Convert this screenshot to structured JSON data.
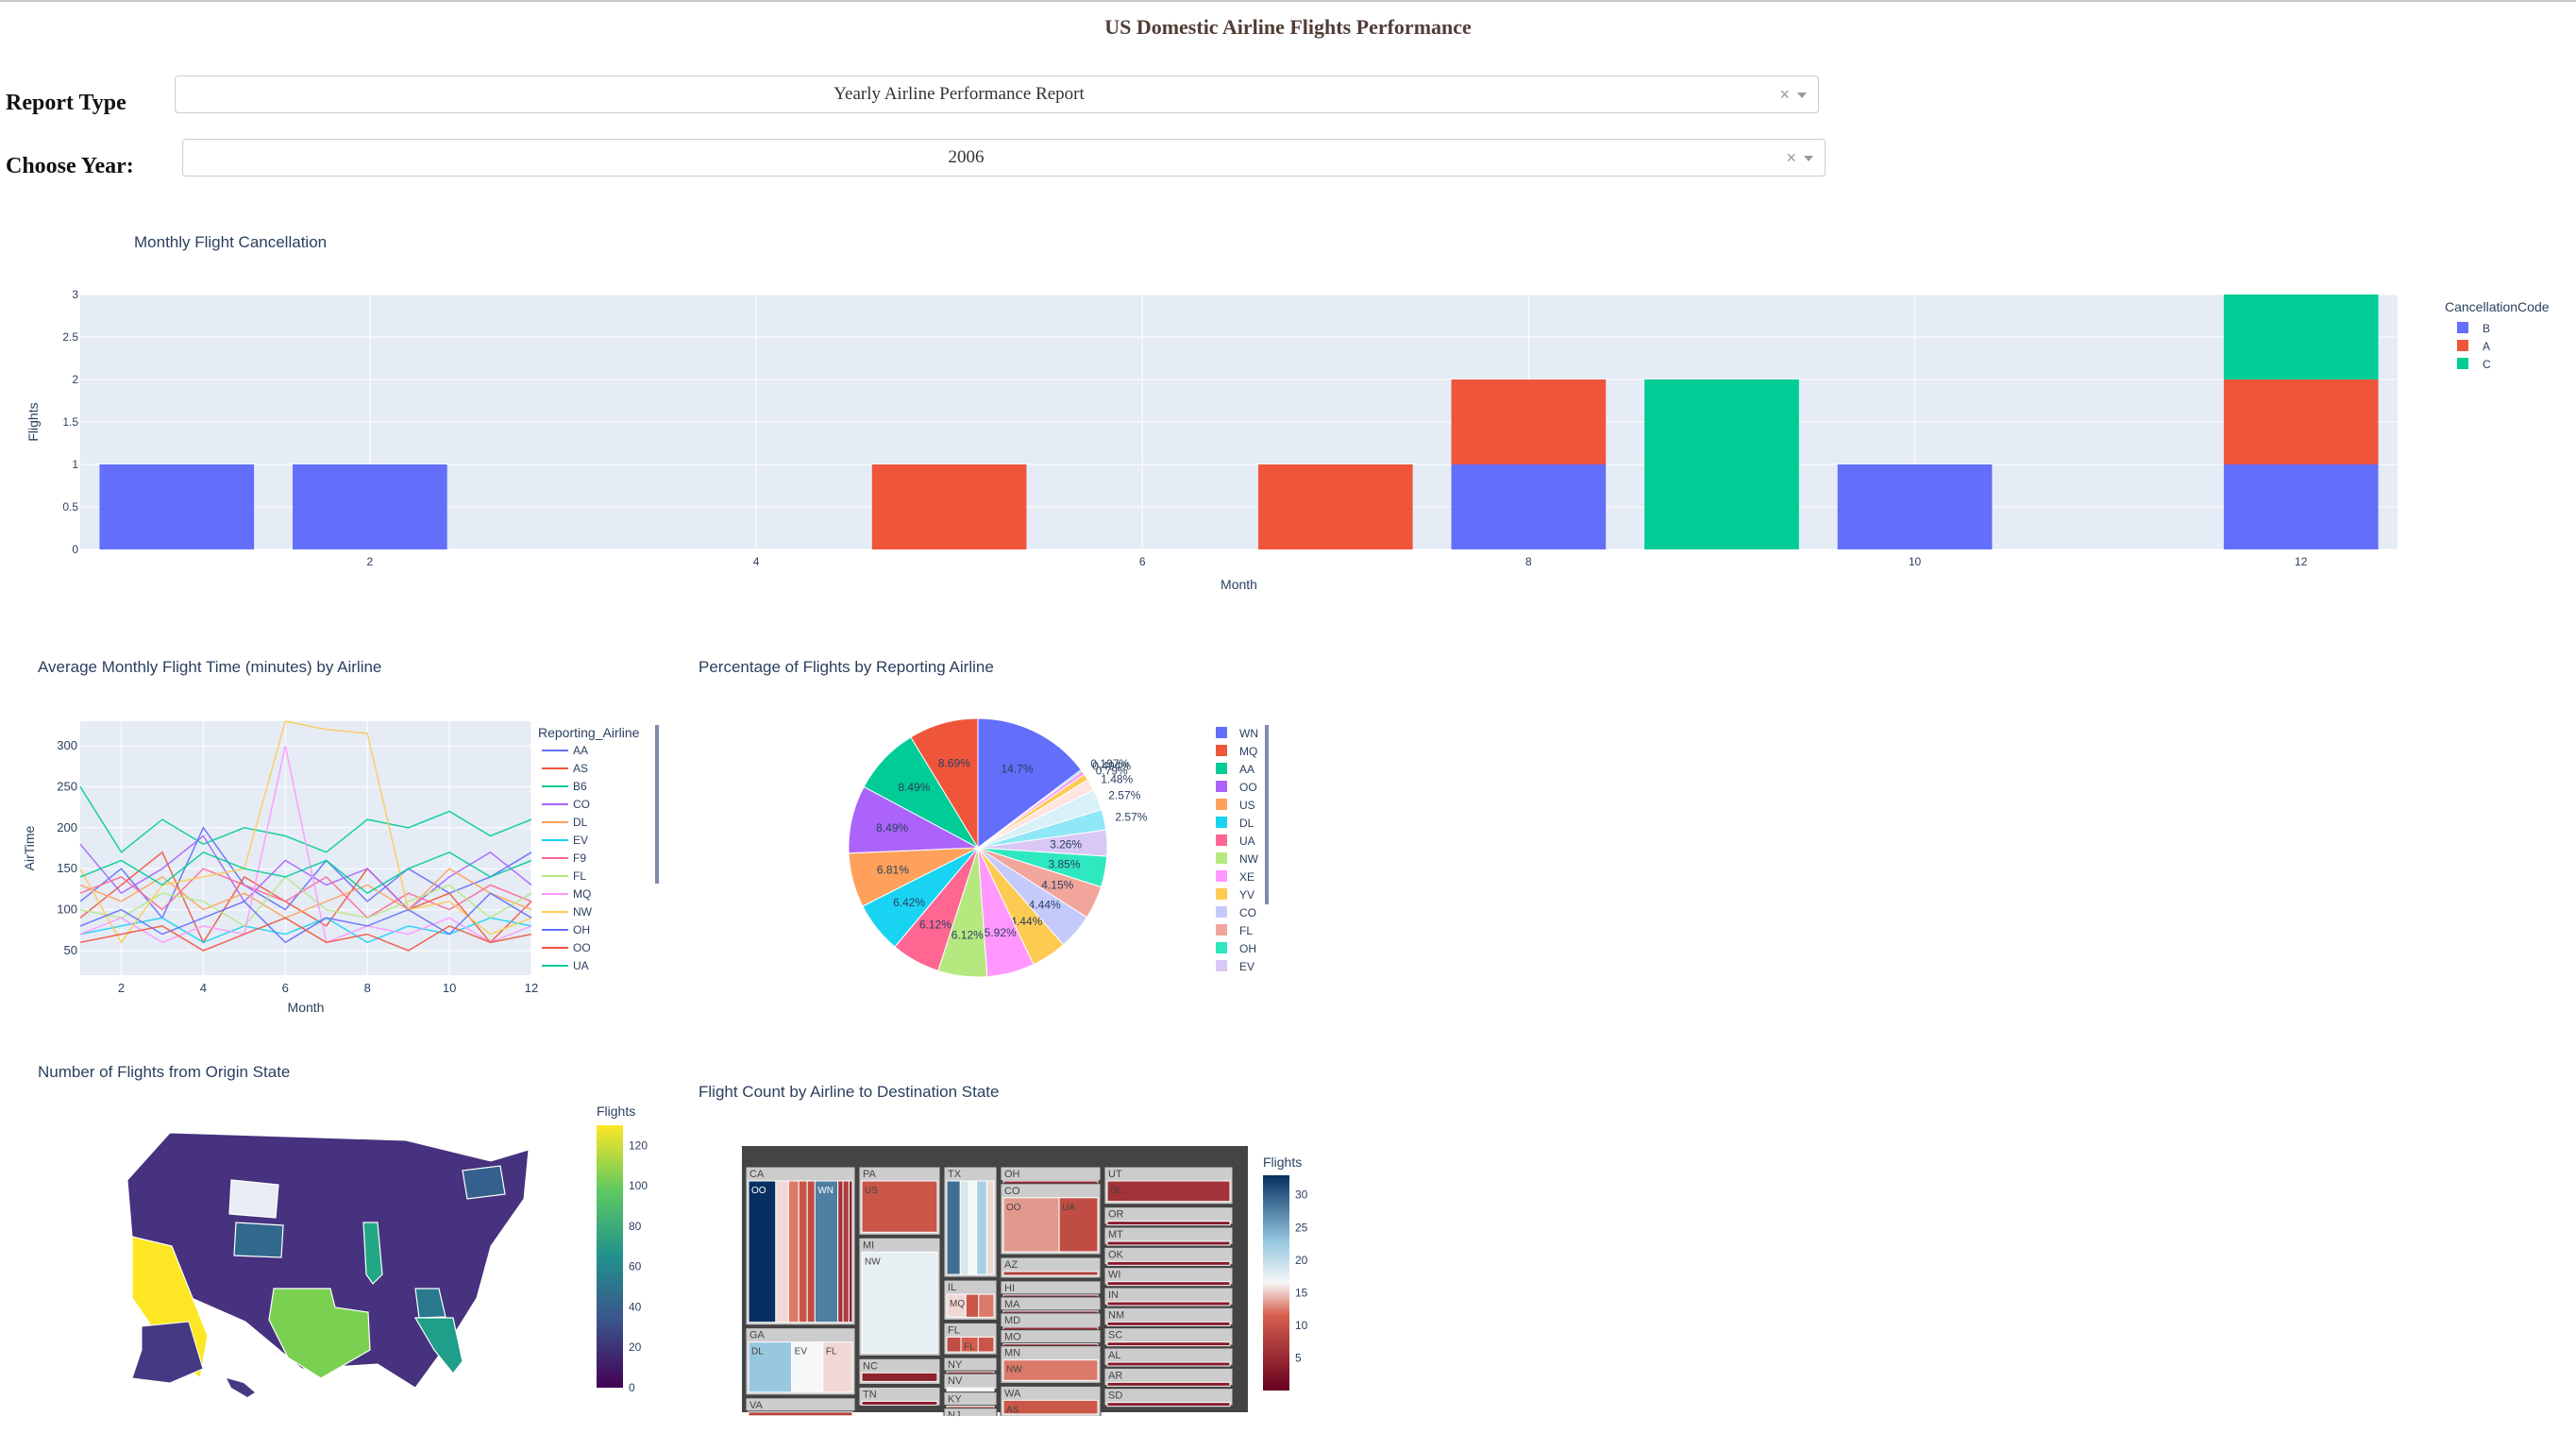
{
  "page": {
    "title": "US Domestic Airline Flights Performance"
  },
  "filters": {
    "report_type": {
      "label": "Report Type",
      "value": "Yearly Airline Performance Report",
      "clear": "×"
    },
    "year": {
      "label": "Choose Year:",
      "value": "2006",
      "clear": "×"
    }
  },
  "cancellation": {
    "title": "Monthly Flight Cancellation"
  },
  "airtime": {
    "title": "Average Monthly Flight Time (minutes) by Airline"
  },
  "pie": {
    "title": "Percentage of Flights by Reporting Airline"
  },
  "map": {
    "title": "Number of Flights from Origin State"
  },
  "treemap": {
    "title": "Flight Count by Airline to Destination State"
  },
  "chart_data": [
    {
      "id": "cancellation",
      "type": "bar",
      "title": "Monthly Flight Cancellation",
      "xlabel": "Month",
      "ylabel": "Flights",
      "ylim": [
        0,
        3
      ],
      "xticks": [
        2,
        4,
        6,
        8,
        10,
        12
      ],
      "yticks": [
        0,
        0.5,
        1,
        1.5,
        2,
        2.5,
        3
      ],
      "stacked": true,
      "legend_title": "CancellationCode",
      "legend_position": "top-right",
      "colors": {
        "B": "#636efa",
        "A": "#ef553b",
        "C": "#00cc96"
      },
      "series": [
        {
          "name": "B",
          "points": [
            [
              1,
              1
            ],
            [
              2,
              1
            ],
            [
              8,
              1
            ],
            [
              10,
              1
            ],
            [
              12,
              1
            ]
          ]
        },
        {
          "name": "A",
          "points": [
            [
              5,
              1
            ],
            [
              7,
              1
            ],
            [
              8,
              1
            ],
            [
              12,
              1
            ]
          ]
        },
        {
          "name": "C",
          "points": [
            [
              9,
              2
            ],
            [
              12,
              1
            ]
          ]
        }
      ]
    },
    {
      "id": "airtime",
      "type": "line",
      "title": "Average Monthly Flight Time (minutes) by Airline",
      "xlabel": "Month",
      "ylabel": "AirTime",
      "xlim": [
        1,
        12
      ],
      "ylim": [
        20,
        330
      ],
      "xticks": [
        2,
        4,
        6,
        8,
        10,
        12
      ],
      "yticks": [
        50,
        100,
        150,
        200,
        250,
        300
      ],
      "legend_title": "Reporting_Airline",
      "series": [
        {
          "name": "AA",
          "color": "#636efa",
          "values": [
            110,
            150,
            90,
            200,
            130,
            100,
            160,
            110,
            150,
            120,
            140,
            170
          ]
        },
        {
          "name": "AS",
          "color": "#ef553b",
          "values": [
            90,
            130,
            170,
            60,
            140,
            110,
            80,
            150,
            100,
            120,
            60,
            110
          ]
        },
        {
          "name": "B6",
          "color": "#00cc96",
          "values": [
            250,
            170,
            210,
            180,
            200,
            190,
            170,
            210,
            200,
            220,
            190,
            210
          ]
        },
        {
          "name": "CO",
          "color": "#ab63fa",
          "values": [
            180,
            120,
            150,
            190,
            110,
            160,
            130,
            150,
            100,
            140,
            170,
            130
          ]
        },
        {
          "name": "DL",
          "color": "#ffa15a",
          "values": [
            130,
            110,
            140,
            100,
            120,
            90,
            110,
            130,
            100,
            150,
            120,
            100
          ]
        },
        {
          "name": "EV",
          "color": "#19d3f3",
          "values": [
            70,
            80,
            90,
            60,
            80,
            70,
            90,
            60,
            80,
            70,
            90,
            80
          ]
        },
        {
          "name": "F9",
          "color": "#ff6692",
          "values": [
            120,
            140,
            100,
            150,
            130,
            110,
            140,
            90,
            120,
            100,
            130,
            110
          ]
        },
        {
          "name": "FL",
          "color": "#b6e880",
          "values": [
            100,
            90,
            120,
            110,
            80,
            140,
            100,
            90,
            110,
            130,
            90,
            120
          ]
        },
        {
          "name": "MQ",
          "color": "#ff97ff",
          "values": [
            70,
            90,
            60,
            80,
            70,
            300,
            60,
            80,
            70,
            90,
            60,
            80
          ]
        },
        {
          "name": "NW",
          "color": "#fecb52",
          "values": [
            150,
            60,
            130,
            140,
            150,
            330,
            320,
            315,
            100,
            110,
            70,
            90
          ]
        },
        {
          "name": "OH",
          "color": "#636efa",
          "values": [
            80,
            100,
            70,
            90,
            110,
            60,
            90,
            80,
            100,
            70,
            120,
            90
          ]
        },
        {
          "name": "OO",
          "color": "#ef553b",
          "values": [
            60,
            70,
            80,
            50,
            70,
            90,
            60,
            70,
            50,
            80,
            60,
            70
          ]
        },
        {
          "name": "UA",
          "color": "#00cc96",
          "values": [
            140,
            160,
            130,
            170,
            150,
            140,
            160,
            120,
            150,
            170,
            140,
            160
          ]
        }
      ]
    },
    {
      "id": "pie",
      "type": "pie",
      "title": "Percentage of Flights by Reporting Airline",
      "slices": [
        {
          "label": "WN",
          "value": 14.7,
          "color": "#636efa"
        },
        {
          "label": "OH",
          "value": 0.197,
          "color": "#1bd3a0"
        },
        {
          "label": "XE",
          "value": 0.494,
          "color": "#ff97ff"
        },
        {
          "label": "B6",
          "value": 0.79,
          "color": "#fecb52"
        },
        {
          "label": "DL",
          "value": 1.48,
          "color": "#ffe5e0"
        },
        {
          "label": "AS",
          "value": 2.57,
          "color": "#d8f0f7"
        },
        {
          "label": "F9",
          "value": 2.57,
          "color": "#8fe8f7"
        },
        {
          "label": "EV",
          "value": 3.26,
          "color": "#d9c8f5"
        },
        {
          "label": "OH",
          "value": 3.85,
          "color": "#2ee8c0"
        },
        {
          "label": "FL",
          "value": 4.15,
          "color": "#f2a59a"
        },
        {
          "label": "CO",
          "value": 4.44,
          "color": "#c5cafc"
        },
        {
          "label": "YV",
          "value": 4.44,
          "color": "#fecb52"
        },
        {
          "label": "XE",
          "value": 5.92,
          "color": "#ff97ff"
        },
        {
          "label": "NW",
          "value": 6.12,
          "color": "#b6e880"
        },
        {
          "label": "UA",
          "value": 6.12,
          "color": "#ff6692"
        },
        {
          "label": "DL",
          "value": 6.42,
          "color": "#19d3f3"
        },
        {
          "label": "US",
          "value": 6.81,
          "color": "#ffa15a"
        },
        {
          "label": "OO",
          "value": 8.49,
          "color": "#ab63fa"
        },
        {
          "label": "AA",
          "value": 8.49,
          "color": "#00cc96"
        },
        {
          "label": "MQ",
          "value": 8.69,
          "color": "#ef553b"
        }
      ],
      "legend": [
        {
          "label": "WN",
          "color": "#636efa"
        },
        {
          "label": "MQ",
          "color": "#ef553b"
        },
        {
          "label": "AA",
          "color": "#00cc96"
        },
        {
          "label": "OO",
          "color": "#ab63fa"
        },
        {
          "label": "US",
          "color": "#ffa15a"
        },
        {
          "label": "DL",
          "color": "#19d3f3"
        },
        {
          "label": "UA",
          "color": "#ff6692"
        },
        {
          "label": "NW",
          "color": "#b6e880"
        },
        {
          "label": "XE",
          "color": "#ff97ff"
        },
        {
          "label": "YV",
          "color": "#fecb52"
        },
        {
          "label": "CO",
          "color": "#c5cafc"
        },
        {
          "label": "FL",
          "color": "#f2a59a"
        },
        {
          "label": "OH",
          "color": "#2ee8c0"
        },
        {
          "label": "EV",
          "color": "#d9c8f5"
        }
      ]
    },
    {
      "id": "map",
      "type": "choropleth",
      "title": "Number of Flights from Origin State",
      "colorbar": {
        "title": "Flights",
        "ticks": [
          0,
          20,
          40,
          60,
          80,
          100,
          120
        ],
        "colors": [
          "#440154",
          "#3b528b",
          "#21918c",
          "#5ec962",
          "#fde725"
        ]
      },
      "states": [
        {
          "state": "CA",
          "value": 125,
          "color": "#fde725"
        },
        {
          "state": "TX",
          "value": 85,
          "color": "#7ad151"
        },
        {
          "state": "IL",
          "value": 60,
          "color": "#22a884"
        },
        {
          "state": "FL",
          "value": 55,
          "color": "#1f9e89"
        },
        {
          "state": "WY",
          "value": 15,
          "color": "#e8ecf5"
        },
        {
          "state": "GA",
          "value": 40,
          "color": "#2a788e"
        },
        {
          "state": "NY",
          "value": 30,
          "color": "#35608d"
        },
        {
          "state": "CO",
          "value": 35,
          "color": "#31688e"
        }
      ]
    },
    {
      "id": "treemap",
      "type": "treemap",
      "title": "Flight Count by Airline to Destination State",
      "colorbar": {
        "title": "Flights",
        "ticks": [
          5,
          10,
          15,
          20,
          25,
          30
        ]
      },
      "groups": [
        {
          "state": "CA",
          "airlines": [
            [
              "OO",
              32
            ],
            [
              "UA",
              15
            ],
            [
              "MQ",
              12
            ],
            [
              "US",
              10
            ],
            [
              "AA",
              9
            ],
            [
              "WN",
              27
            ],
            [
              "B6",
              6
            ],
            [
              "AS",
              7
            ],
            [
              "CO",
              4
            ]
          ]
        },
        {
          "state": "GA",
          "airlines": [
            [
              "DL",
              22
            ],
            [
              "EV",
              16
            ],
            [
              "FL",
              15
            ]
          ]
        },
        {
          "state": "VA",
          "airlines": [
            [
              "YV",
              8
            ]
          ]
        },
        {
          "state": "PA",
          "airlines": [
            [
              "US",
              10
            ]
          ]
        },
        {
          "state": "MI",
          "airlines": [
            [
              "NW",
              17
            ]
          ]
        },
        {
          "state": "NC",
          "airlines": [
            [
              "US",
              4
            ]
          ]
        },
        {
          "state": "TN",
          "airlines": [
            [
              "9E",
              3
            ]
          ]
        },
        {
          "state": "TX",
          "airlines": [
            [
              "AA",
              28
            ],
            [
              "WN",
              18
            ],
            [
              "CO",
              16
            ],
            [
              "MQ",
              21
            ],
            [
              "XE",
              15
            ]
          ]
        },
        {
          "state": "IL",
          "airlines": [
            [
              "MQ",
              15
            ],
            [
              "AA",
              10
            ],
            [
              "UA",
              12
            ]
          ]
        },
        {
          "state": "FL",
          "airlines": [
            [
              "AA",
              9
            ],
            [
              "FL",
              11
            ],
            [
              "WN",
              10
            ]
          ]
        },
        {
          "state": "NY",
          "airlines": [
            [
              "B6",
              5
            ]
          ]
        },
        {
          "state": "NV",
          "airlines": [
            [
              "WN",
              16
            ]
          ]
        },
        {
          "state": "KY",
          "airlines": [
            [
              "OH",
              12
            ]
          ]
        },
        {
          "state": "NJ",
          "airlines": [
            [
              "CO",
              11
            ]
          ]
        },
        {
          "state": "OH",
          "airlines": [
            [
              "OH",
              5
            ]
          ]
        },
        {
          "state": "CO",
          "airlines": [
            [
              "OO",
              13
            ],
            [
              "UA",
              9
            ]
          ]
        },
        {
          "state": "AZ",
          "airlines": [
            [
              "WN",
              7
            ]
          ]
        },
        {
          "state": "HI",
          "airlines": [
            [
              "HA",
              3
            ]
          ]
        },
        {
          "state": "MA",
          "airlines": [
            [
              "B6",
              4
            ]
          ]
        },
        {
          "state": "MD",
          "airlines": [
            [
              "WN",
              5
            ]
          ]
        },
        {
          "state": "MO",
          "airlines": [
            [
              "WN",
              4
            ]
          ]
        },
        {
          "state": "MN",
          "airlines": [
            [
              "NW",
              12
            ]
          ]
        },
        {
          "state": "WA",
          "airlines": [
            [
              "AS",
              10
            ]
          ]
        },
        {
          "state": "UT",
          "airlines": [
            [
              "DL",
              6
            ]
          ]
        },
        {
          "state": "OR",
          "airlines": [
            [
              "AS",
              3
            ]
          ]
        },
        {
          "state": "MT",
          "airlines": [
            [
              "NW",
              3
            ]
          ]
        },
        {
          "state": "OK",
          "airlines": [
            [
              "AA",
              3
            ]
          ]
        },
        {
          "state": "WI",
          "airlines": [
            [
              "NW",
              3
            ]
          ]
        },
        {
          "state": "IN",
          "airlines": [
            [
              "US",
              3
            ]
          ]
        },
        {
          "state": "NM",
          "airlines": [
            [
              "WN",
              3
            ]
          ]
        },
        {
          "state": "SC",
          "airlines": [
            [
              "DL",
              3
            ]
          ]
        },
        {
          "state": "AL",
          "airlines": [
            [
              "DL",
              3
            ]
          ]
        },
        {
          "state": "AR",
          "airlines": [
            [
              "AA",
              3
            ]
          ]
        },
        {
          "state": "SD",
          "airlines": [
            [
              "NW",
              3
            ]
          ]
        }
      ]
    }
  ]
}
